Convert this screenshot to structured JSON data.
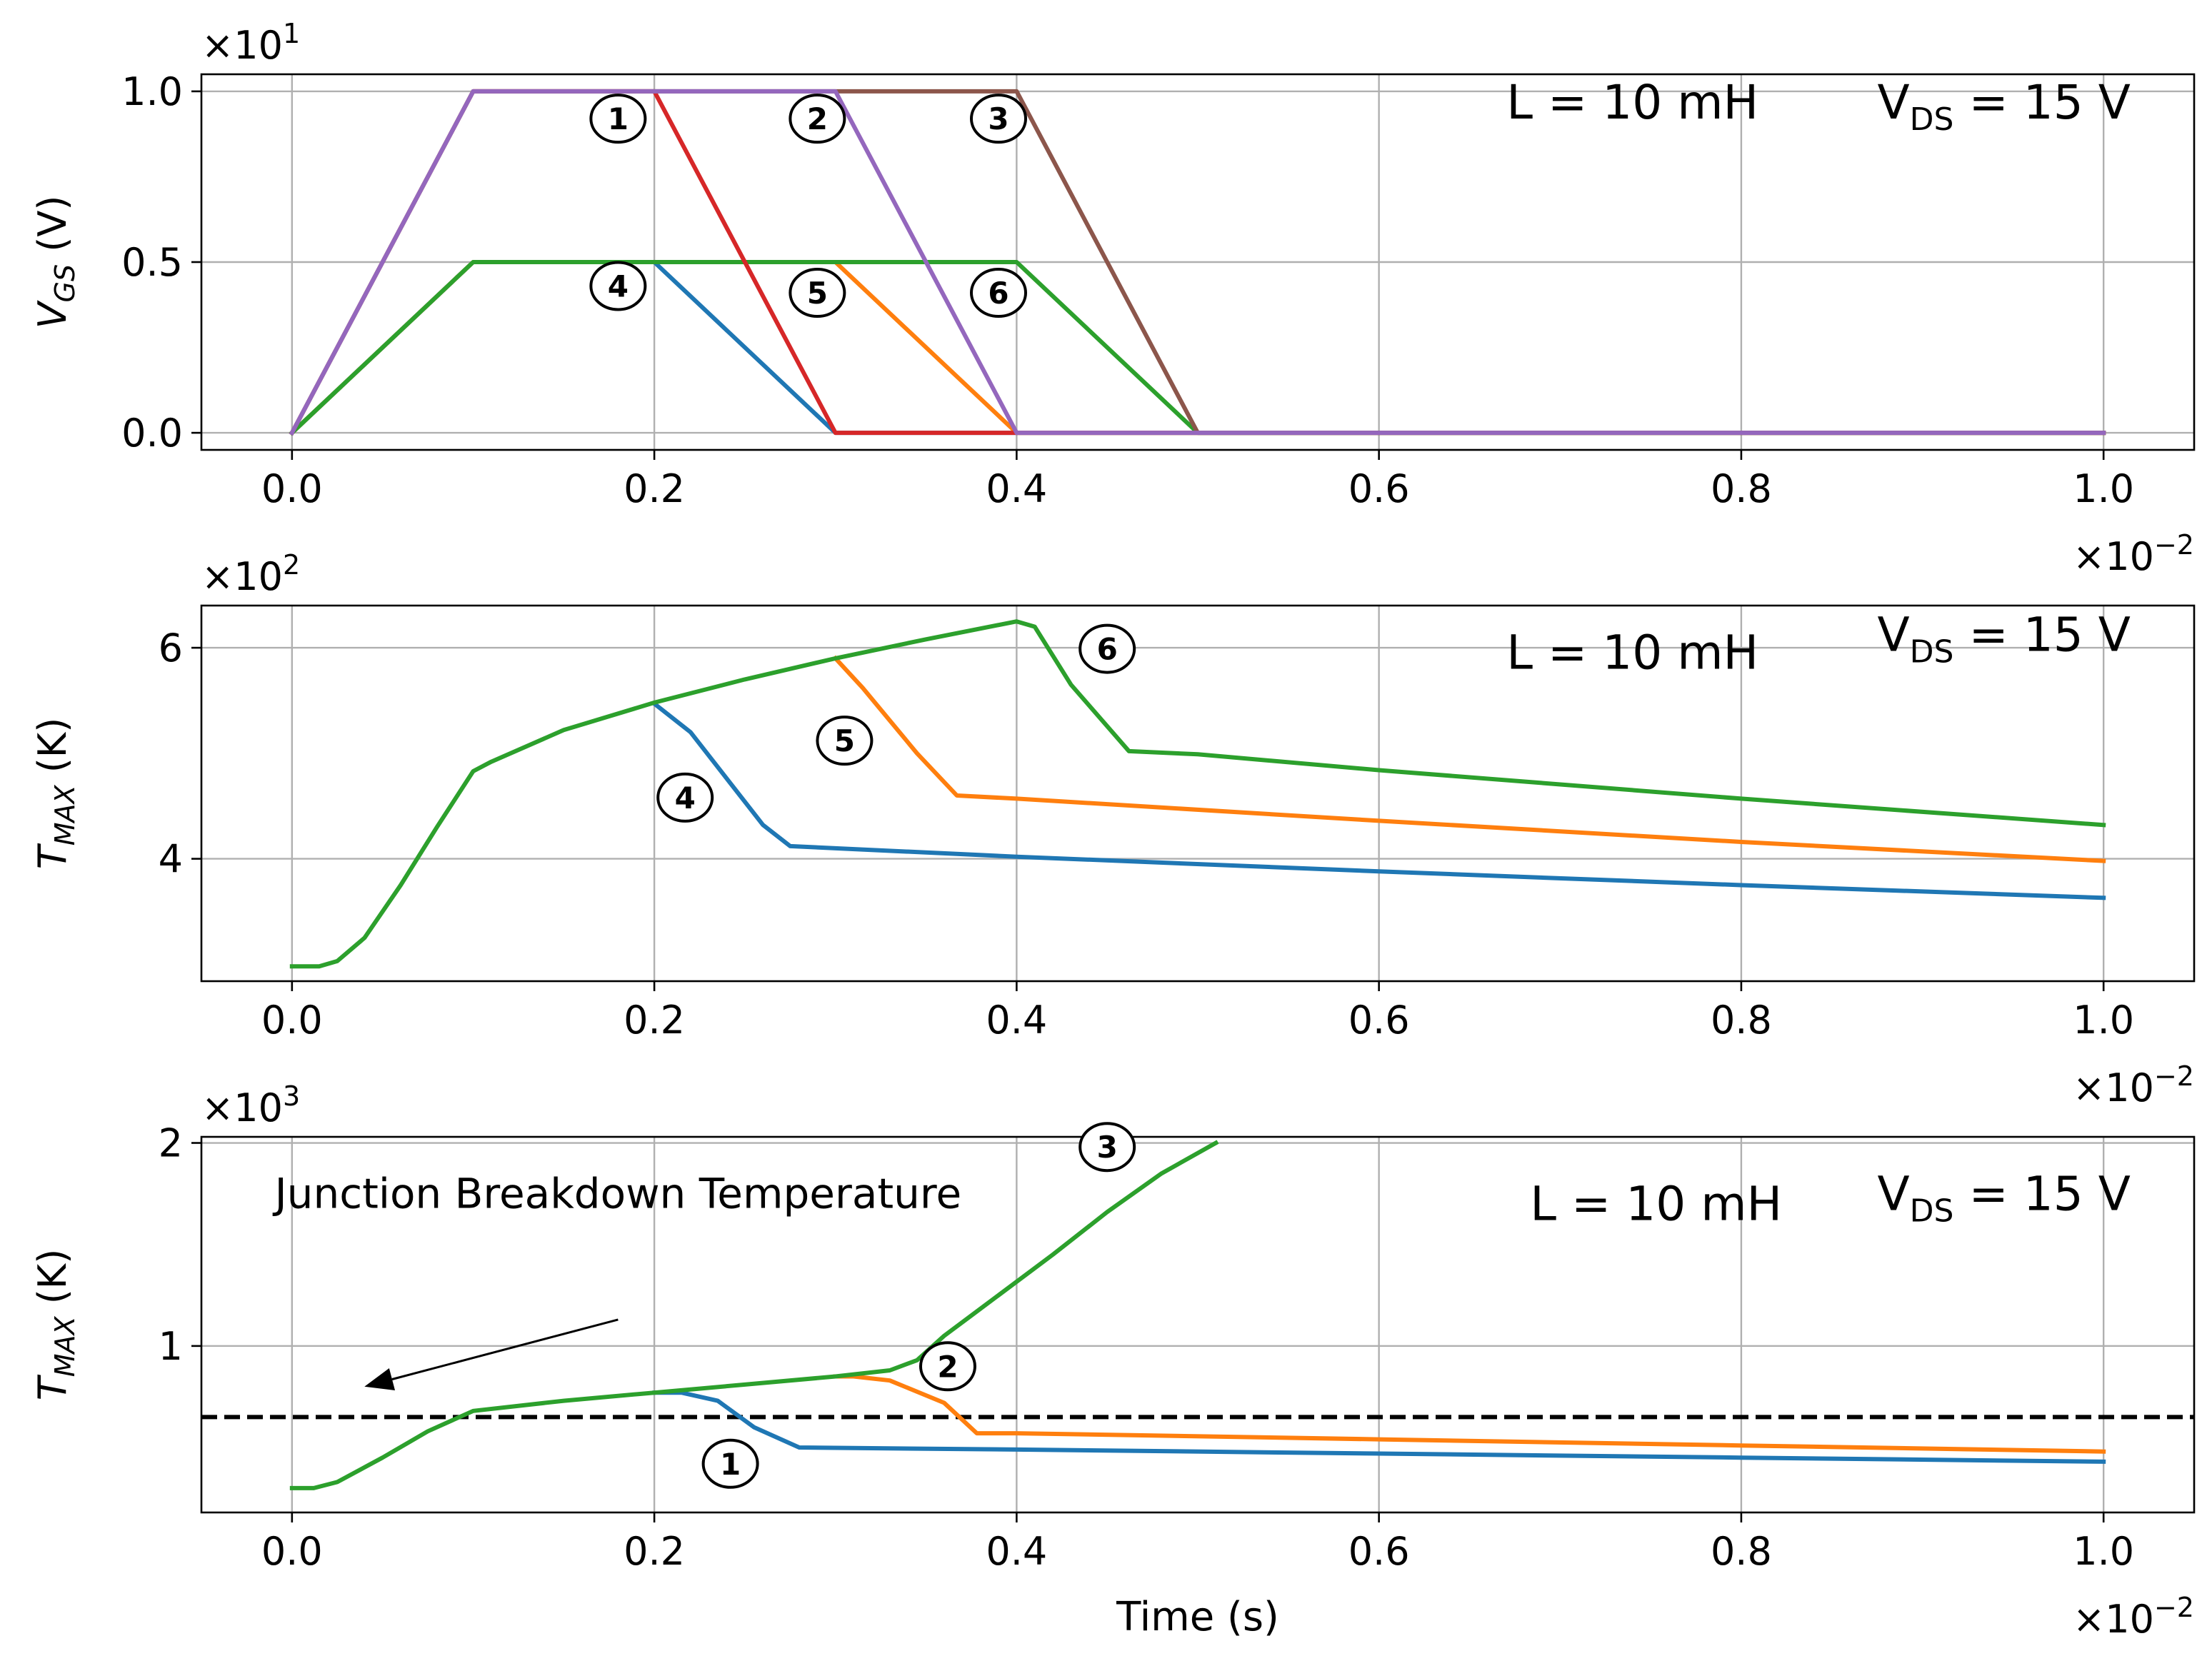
{
  "chart_data": [
    {
      "type": "line",
      "title": "",
      "xlabel": "",
      "ylabel": "V_GS (V)",
      "ylabel_main": "V",
      "ylabel_sub": "GS",
      "ylabel_unit": " (V)",
      "ylabel_italic": true,
      "y_multiplier": "×10",
      "y_multiplier_exp": "1",
      "x_multiplier": "×10",
      "x_multiplier_exp": "−2",
      "xlim": [
        -0.05,
        1.05
      ],
      "ylim": [
        -0.05,
        1.05
      ],
      "xticks": [
        0.0,
        0.2,
        0.4,
        0.6,
        0.8,
        1.0
      ],
      "xticklabels": [
        "0.0",
        "0.2",
        "0.4",
        "0.6",
        "0.8",
        "1.0"
      ],
      "yticks": [
        0.0,
        0.5,
        1.0
      ],
      "yticklabels": [
        "0.0",
        "0.5",
        "1.0"
      ],
      "grid": true,
      "annotations": [
        {
          "text": "L = 10 mH",
          "x": 0.74,
          "y": 0.92
        },
        {
          "text": "V_DS = 15 V",
          "main": "V",
          "sub": "DS",
          "rest": " = 15 V",
          "x": 0.945,
          "y": 0.92
        }
      ],
      "markers": [
        {
          "label": "1",
          "x": 0.18,
          "y": 0.92
        },
        {
          "label": "2",
          "x": 0.29,
          "y": 0.92
        },
        {
          "label": "3",
          "x": 0.39,
          "y": 0.92
        },
        {
          "label": "4",
          "x": 0.18,
          "y": 0.43
        },
        {
          "label": "5",
          "x": 0.29,
          "y": 0.41
        },
        {
          "label": "6",
          "x": 0.39,
          "y": 0.41
        }
      ],
      "series": [
        {
          "name": "4",
          "color": "#1f77b4",
          "x": [
            0.0,
            0.1,
            0.2,
            0.3,
            1.0
          ],
          "y": [
            0.0,
            0.5,
            0.5,
            0.0,
            0.0
          ]
        },
        {
          "name": "5",
          "color": "#ff7f0e",
          "x": [
            0.0,
            0.1,
            0.3,
            0.4,
            1.0
          ],
          "y": [
            0.0,
            0.5,
            0.5,
            0.0,
            0.0
          ]
        },
        {
          "name": "6",
          "color": "#2ca02c",
          "x": [
            0.0,
            0.1,
            0.4,
            0.5,
            1.0
          ],
          "y": [
            0.0,
            0.5,
            0.5,
            0.0,
            0.0
          ]
        },
        {
          "name": "1",
          "color": "#d62728",
          "x": [
            0.0,
            0.1,
            0.2,
            0.3,
            1.0
          ],
          "y": [
            0.0,
            1.0,
            1.0,
            0.0,
            0.0
          ]
        },
        {
          "name": "3",
          "color": "#8c564b",
          "x": [
            0.0,
            0.1,
            0.4,
            0.5,
            1.0
          ],
          "y": [
            0.0,
            1.0,
            1.0,
            0.0,
            0.0
          ]
        },
        {
          "name": "2",
          "color": "#9467bd",
          "x": [
            0.0,
            0.1,
            0.3,
            0.4,
            1.0
          ],
          "y": [
            0.0,
            1.0,
            1.0,
            0.0,
            0.0
          ]
        }
      ]
    },
    {
      "type": "line",
      "title": "",
      "xlabel": "",
      "ylabel": "T_MAX (K)",
      "ylabel_main": "T",
      "ylabel_sub": "MAX",
      "ylabel_unit": " (K)",
      "ylabel_italic": true,
      "y_multiplier": "×10",
      "y_multiplier_exp": "2",
      "x_multiplier": "×10",
      "x_multiplier_exp": "−2",
      "xlim": [
        -0.05,
        1.05
      ],
      "ylim": [
        2.84,
        6.4
      ],
      "xticks": [
        0.0,
        0.2,
        0.4,
        0.6,
        0.8,
        1.0
      ],
      "xticklabels": [
        "0.0",
        "0.2",
        "0.4",
        "0.6",
        "0.8",
        "1.0"
      ],
      "yticks": [
        4,
        6
      ],
      "yticklabels": [
        "4",
        "6"
      ],
      "grid": true,
      "annotations": [
        {
          "text": "L = 10 mH",
          "x": 0.74,
          "y": 5.8
        },
        {
          "text": "V_DS = 15 V",
          "main": "V",
          "sub": "DS",
          "rest": " = 15 V",
          "x": 0.945,
          "y": 5.97
        }
      ],
      "markers": [
        {
          "label": "6",
          "x": 0.45,
          "y": 5.99
        },
        {
          "label": "5",
          "x": 0.305,
          "y": 5.12
        },
        {
          "label": "4",
          "x": 0.217,
          "y": 4.58
        }
      ],
      "series": [
        {
          "name": "4",
          "color": "#1f77b4",
          "x": [
            0.2,
            0.22,
            0.26,
            0.275,
            0.4,
            0.6,
            0.8,
            1.0
          ],
          "y": [
            5.47,
            5.2,
            4.32,
            4.12,
            4.02,
            3.88,
            3.75,
            3.63
          ]
        },
        {
          "name": "5",
          "color": "#ff7f0e",
          "x": [
            0.3,
            0.315,
            0.345,
            0.367,
            0.4,
            0.6,
            0.8,
            1.0
          ],
          "y": [
            5.9,
            5.62,
            5.0,
            4.6,
            4.57,
            4.36,
            4.16,
            3.98
          ]
        },
        {
          "name": "6",
          "color": "#2ca02c",
          "x": [
            0.0,
            0.015,
            0.025,
            0.04,
            0.06,
            0.08,
            0.1,
            0.11,
            0.15,
            0.2,
            0.25,
            0.3,
            0.35,
            0.4,
            0.41,
            0.43,
            0.462,
            0.5,
            0.6,
            0.8,
            1.0
          ],
          "y": [
            2.98,
            2.98,
            3.03,
            3.25,
            3.75,
            4.3,
            4.83,
            4.92,
            5.22,
            5.48,
            5.7,
            5.9,
            6.08,
            6.25,
            6.2,
            5.65,
            5.02,
            4.99,
            4.84,
            4.57,
            4.32
          ]
        }
      ]
    },
    {
      "type": "line",
      "title": "",
      "xlabel": "Time (s)",
      "ylabel": "T_MAX (K)",
      "ylabel_main": "T",
      "ylabel_sub": "MAX",
      "ylabel_unit": " (K)",
      "ylabel_italic": true,
      "y_multiplier": "×10",
      "y_multiplier_exp": "3",
      "x_multiplier": "×10",
      "x_multiplier_exp": "−2",
      "xlim": [
        -0.05,
        1.05
      ],
      "ylim": [
        0.18,
        2.03
      ],
      "xticks": [
        0.0,
        0.2,
        0.4,
        0.6,
        0.8,
        1.0
      ],
      "xticklabels": [
        "0.0",
        "0.2",
        "0.4",
        "0.6",
        "0.8",
        "1.0"
      ],
      "yticks": [
        1,
        2
      ],
      "yticklabels": [
        "1",
        "2"
      ],
      "grid": true,
      "reference_line": {
        "y": 0.65,
        "style": "dashed",
        "color": "#000000"
      },
      "arrow": {
        "from_x": 0.18,
        "from_y": 1.13,
        "to_x": 0.04,
        "to_y": 0.8
      },
      "annotations": [
        {
          "text": "L = 10 mH",
          "x": 0.753,
          "y": 1.62
        },
        {
          "text": "V_DS = 15 V",
          "main": "V",
          "sub": "DS",
          "rest": " = 15 V",
          "x": 0.945,
          "y": 1.67
        },
        {
          "text": "Junction Breakdown  Temperature",
          "x": 0.18,
          "y": 1.68
        }
      ],
      "markers": [
        {
          "label": "3",
          "x": 0.45,
          "y": 1.98
        },
        {
          "label": "2",
          "x": 0.362,
          "y": 0.9
        },
        {
          "label": "1",
          "x": 0.242,
          "y": 0.42
        }
      ],
      "series": [
        {
          "name": "1",
          "color": "#1f77b4",
          "x": [
            0.2,
            0.215,
            0.235,
            0.255,
            0.28,
            0.4,
            0.6,
            0.8,
            1.0
          ],
          "y": [
            0.77,
            0.77,
            0.73,
            0.6,
            0.5,
            0.49,
            0.47,
            0.45,
            0.43
          ]
        },
        {
          "name": "2",
          "color": "#ff7f0e",
          "x": [
            0.3,
            0.31,
            0.33,
            0.36,
            0.378,
            0.4,
            0.6,
            0.8,
            1.0
          ],
          "y": [
            0.85,
            0.85,
            0.83,
            0.72,
            0.57,
            0.57,
            0.54,
            0.51,
            0.48
          ]
        },
        {
          "name": "3",
          "color": "#2ca02c",
          "x": [
            0.0,
            0.012,
            0.025,
            0.05,
            0.075,
            0.1,
            0.15,
            0.2,
            0.25,
            0.3,
            0.33,
            0.345,
            0.36,
            0.375,
            0.39,
            0.42,
            0.45,
            0.48,
            0.51
          ],
          "y": [
            0.3,
            0.3,
            0.33,
            0.45,
            0.58,
            0.68,
            0.73,
            0.77,
            0.81,
            0.85,
            0.88,
            0.93,
            1.05,
            1.15,
            1.25,
            1.45,
            1.66,
            1.85,
            2.0
          ]
        }
      ]
    }
  ]
}
